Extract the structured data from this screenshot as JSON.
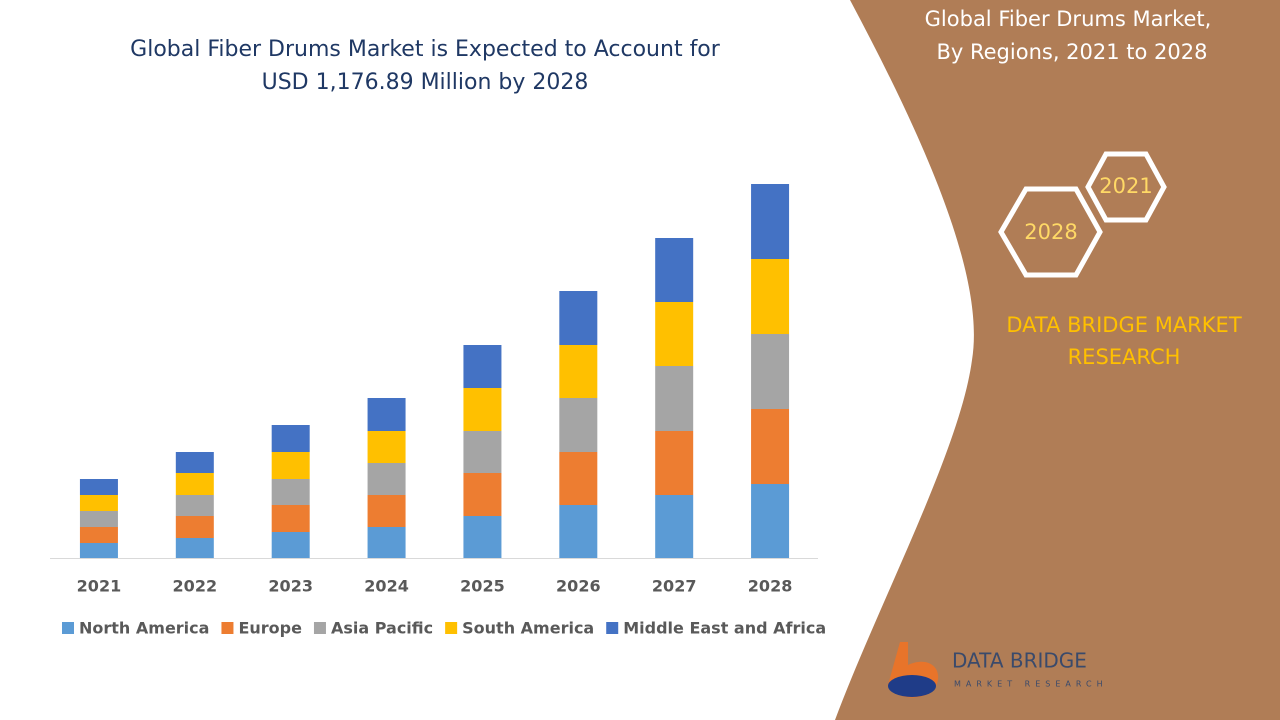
{
  "chart_data": {
    "type": "stacked_bar",
    "title": [
      "Global Fiber Drums Market is Expected to Account for",
      "USD 1,176.89 Million by 2028"
    ],
    "categories": [
      "2021",
      "2022",
      "2023",
      "2024",
      "2025",
      "2026",
      "2027",
      "2028"
    ],
    "series": [
      {
        "name": "North America",
        "color": "#5b9bd5",
        "values": [
          15,
          20,
          26,
          31,
          42,
          53,
          63,
          74
        ]
      },
      {
        "name": "Europe",
        "color": "#ed7d31",
        "values": [
          16,
          22,
          27,
          32,
          43,
          53,
          64,
          75
        ]
      },
      {
        "name": "Asia Pacific",
        "color": "#a5a5a5",
        "values": [
          16,
          21,
          26,
          32,
          42,
          54,
          65,
          75
        ]
      },
      {
        "name": "South America",
        "color": "#ffc000",
        "values": [
          16,
          22,
          27,
          32,
          43,
          53,
          64,
          75
        ]
      },
      {
        "name": "Middle East and Africa",
        "color": "#4472c4",
        "values": [
          16,
          21,
          27,
          33,
          43,
          54,
          64,
          75
        ]
      }
    ],
    "ylim": [
      0,
      374
    ],
    "legend": "bottom"
  },
  "sidebar": {
    "title": [
      "Global Fiber Drums Market,",
      "By Regions, 2021 to 2028"
    ],
    "hexagons": [
      "2021",
      "2028"
    ],
    "brand": [
      "DATA BRIDGE MARKET",
      "RESEARCH"
    ],
    "logo": {
      "name": "DATA BRIDGE",
      "tagline": "MARKET RESEARCH"
    }
  }
}
